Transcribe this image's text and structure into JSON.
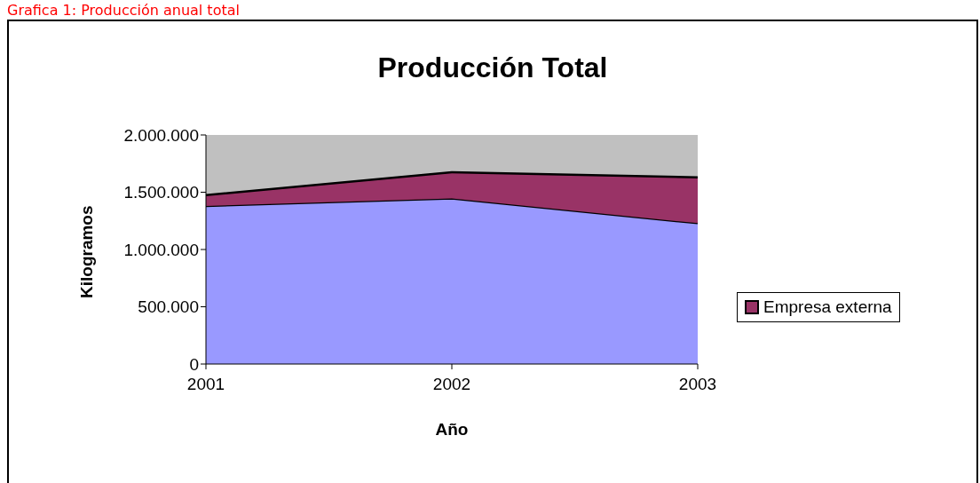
{
  "chart_data": {
    "type": "area",
    "title": "Producción Total",
    "xlabel": "Año",
    "ylabel": "Kilogramos",
    "annotations": [
      "Grafica 1: Producción anual total"
    ],
    "categories": [
      "2001",
      "2002",
      "2003"
    ],
    "stacked": true,
    "series": [
      {
        "color": "#9999ff",
        "values": [
          1380000,
          1445000,
          1230000
        ]
      },
      {
        "name": "Empresa externa",
        "color": "#993366",
        "values": [
          95000,
          230000,
          400000
        ]
      }
    ],
    "ylim": [
      0,
      2000000
    ],
    "yticks": [
      {
        "value": 0,
        "label": "0"
      },
      {
        "value": 500000,
        "label": "500.000"
      },
      {
        "value": 1000000,
        "label": "1.000.000"
      },
      {
        "value": 1500000,
        "label": "1.500.000"
      },
      {
        "value": 2000000,
        "label": "2.000.000"
      }
    ],
    "legend": "right"
  }
}
